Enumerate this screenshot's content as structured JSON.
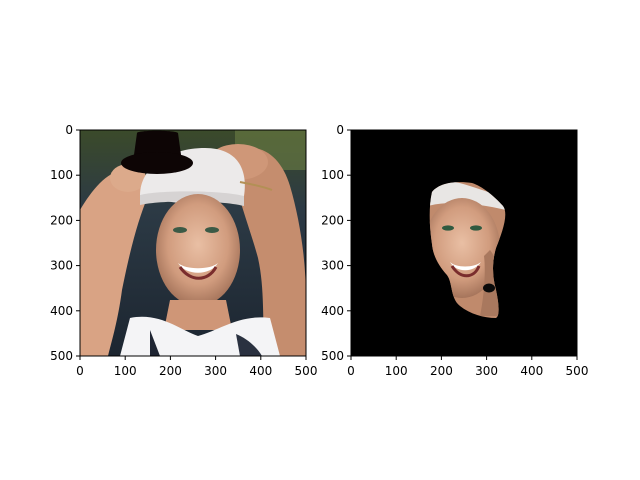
{
  "figure": {
    "panels": [
      {
        "name": "left-panel",
        "content": "photo of a smiling woman in a white cap with a black top hat drawn over her head",
        "x_ticks": [
          "0",
          "100",
          "200",
          "300",
          "400",
          "500"
        ],
        "y_ticks": [
          "0",
          "100",
          "200",
          "300",
          "400",
          "500"
        ],
        "x_range": [
          0,
          500
        ],
        "y_range": [
          0,
          500
        ]
      },
      {
        "name": "right-panel",
        "content": "segmented face region on black background",
        "x_ticks": [
          "0",
          "100",
          "200",
          "300",
          "400",
          "500"
        ],
        "y_ticks": [
          "0",
          "100",
          "200",
          "300",
          "400",
          "500"
        ],
        "x_range": [
          0,
          500
        ],
        "y_range": [
          0,
          500
        ]
      }
    ]
  }
}
